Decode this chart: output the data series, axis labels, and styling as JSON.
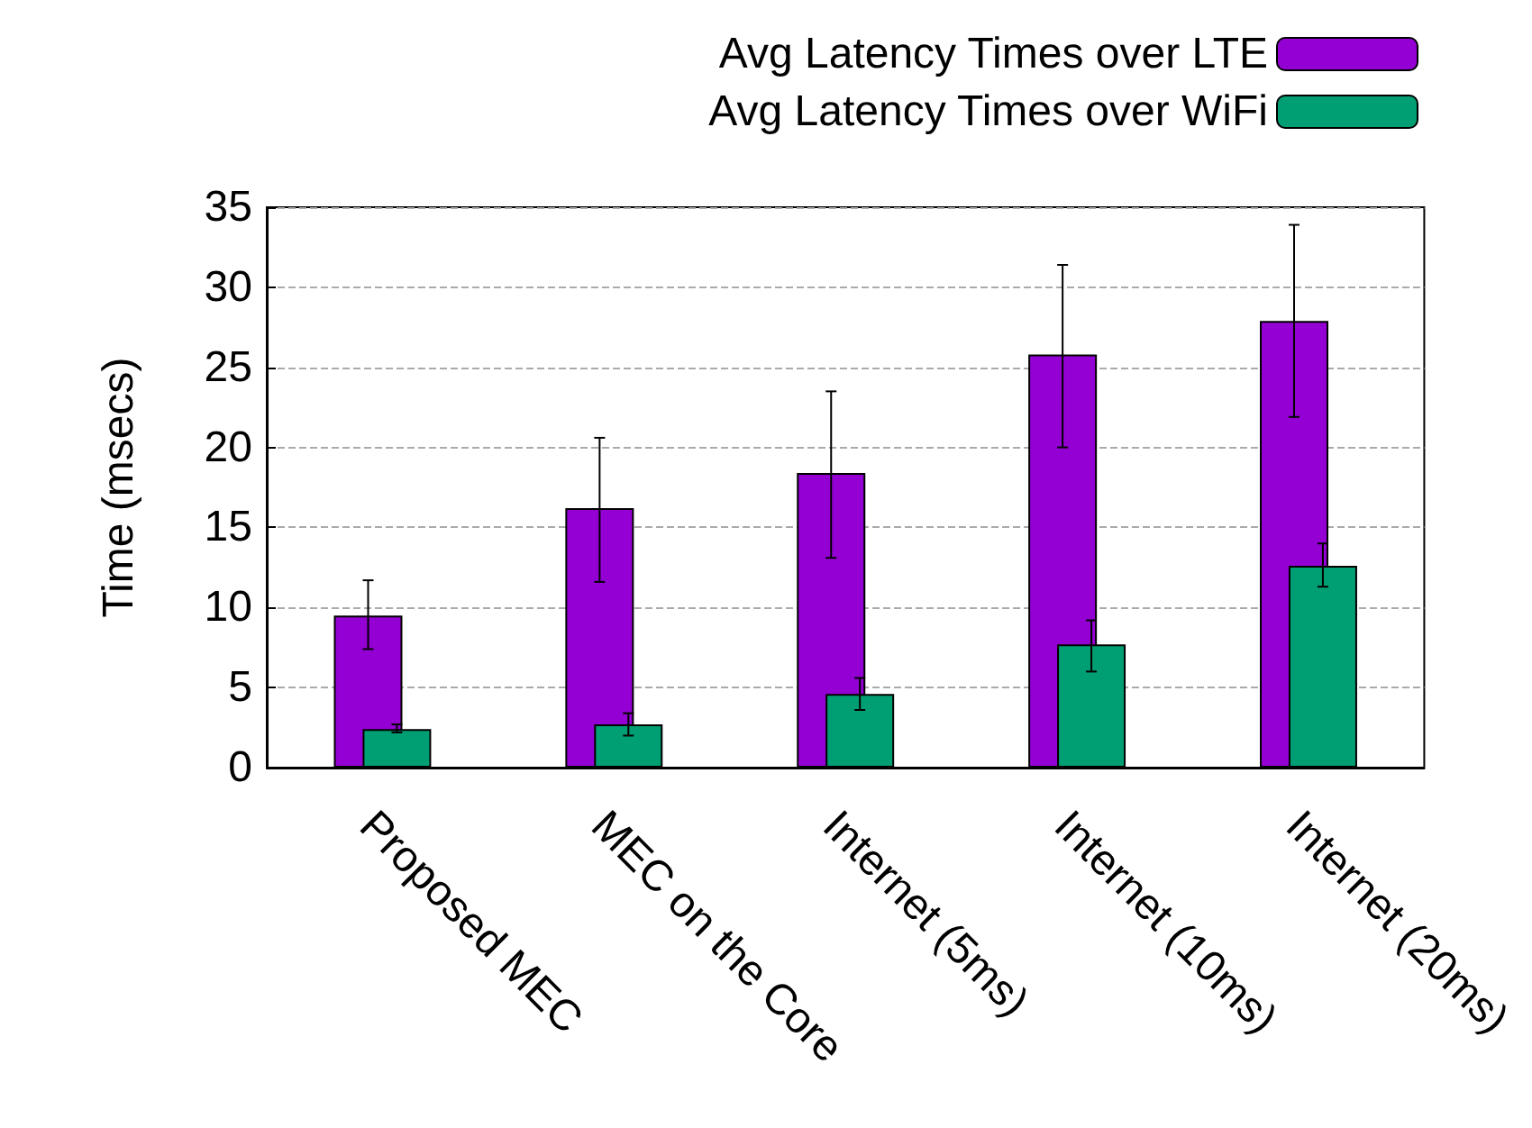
{
  "chart_data": {
    "type": "bar",
    "ylabel": "Time (msecs)",
    "categories": [
      "Proposed MEC",
      "MEC on the Core",
      "Internet (5ms)",
      "Internet (10ms)",
      "Internet (20ms)"
    ],
    "series": [
      {
        "name": "Avg Latency Times over LTE",
        "color": "#9400d3",
        "values": [
          9.5,
          16.2,
          18.4,
          25.8,
          27.9
        ],
        "errors": [
          [
            7.4,
            11.7
          ],
          [
            11.6,
            20.6
          ],
          [
            13.1,
            23.5
          ],
          [
            20.0,
            31.4
          ],
          [
            21.9,
            33.9
          ]
        ]
      },
      {
        "name": "Avg Latency Times over WiFi",
        "color": "#009e73",
        "values": [
          2.4,
          2.7,
          4.6,
          7.7,
          12.6
        ],
        "errors": [
          [
            2.2,
            2.7
          ],
          [
            2.0,
            3.4
          ],
          [
            3.6,
            5.6
          ],
          [
            6.0,
            9.2
          ],
          [
            11.3,
            14.0
          ]
        ]
      }
    ],
    "ylim": [
      0,
      35
    ],
    "yticks": [
      0,
      5,
      10,
      15,
      20,
      25,
      30,
      35
    ],
    "grid": "y",
    "legend": "top right"
  }
}
